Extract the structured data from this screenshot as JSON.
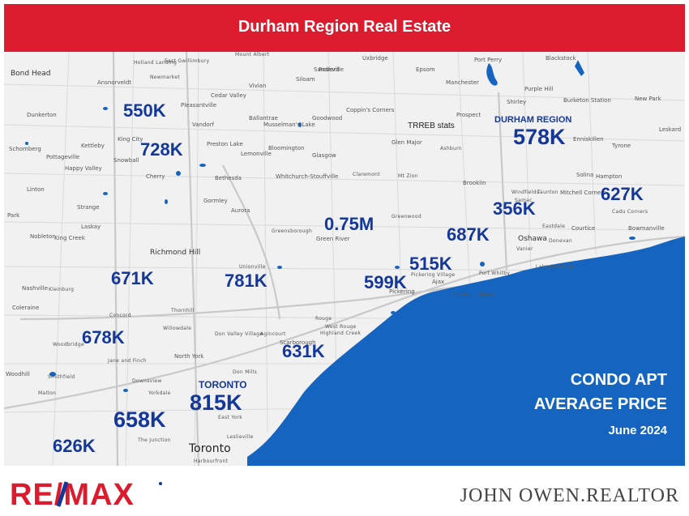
{
  "banner": {
    "title": "Durham Region Real Estate"
  },
  "colors": {
    "banner": "#dc1c2e",
    "price": "#14389a",
    "water": "#1565c0",
    "land": "#f1f1f1",
    "logo_red": "#dc1c2e",
    "logo_blue": "#14389a"
  },
  "map": {
    "source_note": "TRREB stats",
    "region_label": "DURHAM REGION",
    "prices": [
      {
        "id": "king",
        "value": "550K"
      },
      {
        "id": "richmond-north",
        "value": "728K"
      },
      {
        "id": "durham",
        "value": "578K"
      },
      {
        "id": "brock",
        "value": "627K"
      },
      {
        "id": "uxbridge",
        "value": "0.75M"
      },
      {
        "id": "whitby-north",
        "value": "356K"
      },
      {
        "id": "whitby",
        "value": "687K"
      },
      {
        "id": "ajax",
        "value": "515K"
      },
      {
        "id": "pickering",
        "value": "599K"
      },
      {
        "id": "vaughan",
        "value": "671K"
      },
      {
        "id": "markham",
        "value": "781K"
      },
      {
        "id": "york",
        "value": "678K"
      },
      {
        "id": "scarborough",
        "value": "631K"
      },
      {
        "id": "toronto",
        "value": "815K"
      },
      {
        "id": "etobicoke",
        "value": "658K"
      },
      {
        "id": "mississauga",
        "value": "626K"
      }
    ],
    "toronto_label": "TORONTO",
    "places": [
      "Bond Head",
      "Holland Landing",
      "East Gwillimbury",
      "Mount Albert",
      "Uxbridge",
      "Port Perry",
      "Blackstock",
      "Ansnorveldt",
      "Newmarket",
      "Vivian",
      "Sandford",
      "Epsom",
      "Manchester",
      "Purple Hill",
      "Burketon Station",
      "Dunkerton",
      "King City",
      "Pleasantville",
      "Cedar Valley",
      "Siloam",
      "Roseville",
      "Shirley",
      "New Park",
      "Vandorf",
      "Ballantrae",
      "Coppin's Corners",
      "Prospect",
      "Musselman's Lake",
      "Goodwood",
      "Leskard",
      "Schomberg",
      "Kettleby",
      "Bloomington",
      "Glen Major",
      "Ashburn",
      "Enniskillen",
      "Tyrone",
      "Pottageville",
      "Snowball",
      "Preston Lake",
      "Lemonville",
      "Glasgow",
      "Happy Valley",
      "Cherry",
      "Bethesda",
      "Whitchurch-Stouffville",
      "Claremont",
      "Mt Zion",
      "Brooklin",
      "Solina",
      "Hampton",
      "Linton",
      "Gormley",
      "Taunton",
      "Mitchell Corners",
      "Strange",
      "Aurora",
      "Windfields",
      "Samac",
      "Cadu Corners",
      "Lemonville",
      "Greenwood",
      "Eastdale",
      "Courtice",
      "Bowmanville",
      "Park",
      "Laskay",
      "Nobleton",
      "King Creek",
      "Richmond Hill",
      "Green River",
      "Greensborough",
      "Oshawa",
      "Donevan",
      "Vanier",
      "Lakeview Park",
      "Nashville",
      "Kleinburg",
      "Unionville",
      "Port Whitby",
      "Pickering Village",
      "Ajax",
      "Coleraine",
      "Thornhill",
      "Concord",
      "Pickering",
      "Pickering Beach",
      "Woodbridge",
      "Willowdale",
      "Don Valley Village",
      "Agincourt",
      "Rouge",
      "West Rouge",
      "Highland Creek",
      "Jane and Finch",
      "North York",
      "Woodhill",
      "Smithfield",
      "Downsview",
      "Don Mills",
      "Malton",
      "Yorkdale",
      "East York",
      "The Junction",
      "Leslieville",
      "Toronto",
      "Harbourfront",
      "Bradley",
      "Scarborough"
    ]
  },
  "infobox": {
    "line1": "CONDO APT",
    "line2": "AVERAGE PRICE",
    "date": "June 2024"
  },
  "footer": {
    "logo_text": "RE/MAX",
    "realtor": "JOHN OWEN.REALTOR"
  }
}
